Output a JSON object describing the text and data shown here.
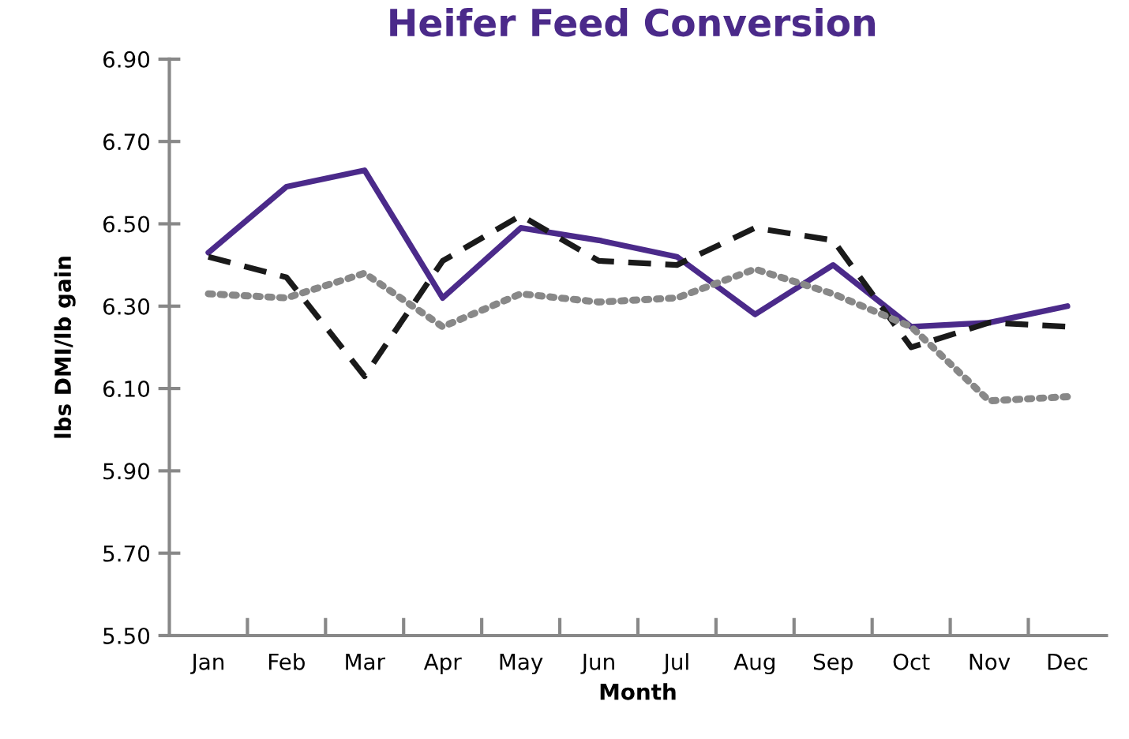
{
  "chart_data": {
    "type": "line",
    "title": "Heifer Feed Conversion",
    "xlabel": "Month",
    "ylabel": "lbs DMI/lb gain",
    "categories": [
      "Jan",
      "Feb",
      "Mar",
      "Apr",
      "May",
      "Jun",
      "Jul",
      "Aug",
      "Sep",
      "Oct",
      "Nov",
      "Dec"
    ],
    "series": [
      {
        "color": "#4b2a8a",
        "line_style": "solid",
        "values": [
          6.43,
          6.59,
          6.63,
          6.32,
          6.49,
          6.46,
          6.42,
          6.28,
          6.4,
          6.25,
          6.26,
          6.3
        ]
      },
      {
        "color": "#1a1a1a",
        "line_style": "dashed",
        "values": [
          6.42,
          6.37,
          6.13,
          6.41,
          6.52,
          6.41,
          6.4,
          6.49,
          6.46,
          6.2,
          6.26,
          6.25
        ]
      },
      {
        "color": "#888888",
        "line_style": "dotted",
        "values": [
          6.33,
          6.32,
          6.38,
          6.25,
          6.33,
          6.31,
          6.32,
          6.39,
          6.33,
          6.25,
          6.07,
          6.08
        ]
      }
    ],
    "ylim": [
      5.5,
      6.9
    ],
    "yticks": [
      {
        "value": 5.5,
        "label": "5.50"
      },
      {
        "value": 5.7,
        "label": "5.70"
      },
      {
        "value": 5.9,
        "label": "5.90"
      },
      {
        "value": 6.1,
        "label": "6.10"
      },
      {
        "value": 6.3,
        "label": "6.30"
      },
      {
        "value": 6.5,
        "label": "6.50"
      },
      {
        "value": 6.7,
        "label": "6.70"
      },
      {
        "value": 6.9,
        "label": "6.90"
      }
    ],
    "grid": false,
    "legend": false,
    "marker": "none"
  }
}
